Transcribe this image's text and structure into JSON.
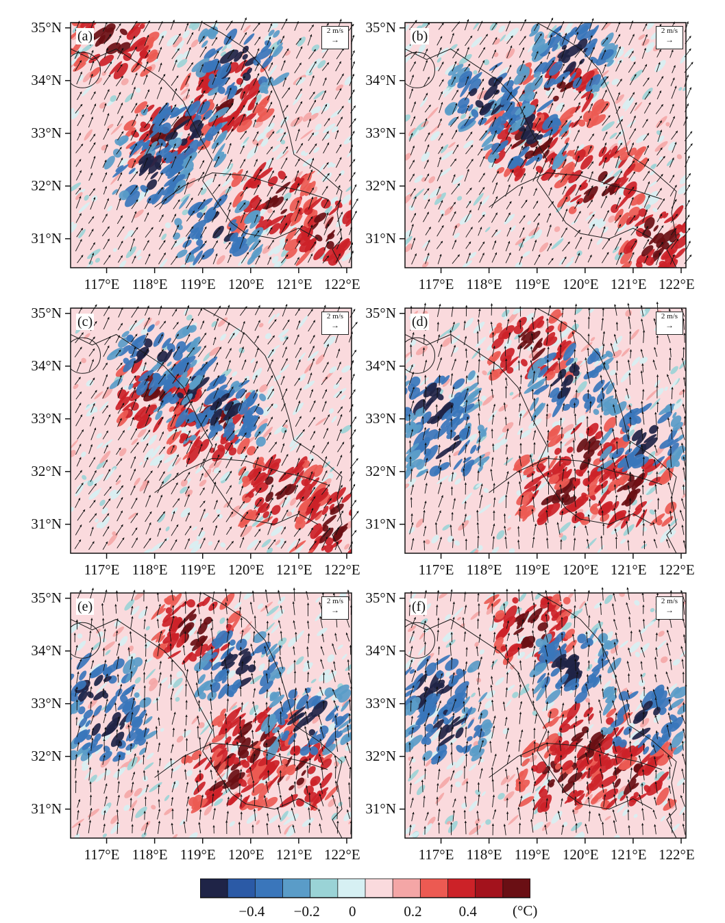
{
  "panels": [
    {
      "label": "(a)",
      "seed": 11,
      "theme": "north"
    },
    {
      "label": "(b)",
      "seed": 23,
      "theme": "northweak"
    },
    {
      "label": "(c)",
      "seed": 37,
      "theme": "weak"
    },
    {
      "label": "(d)",
      "seed": 41,
      "theme": "south"
    },
    {
      "label": "(e)",
      "seed": 53,
      "theme": "south"
    },
    {
      "label": "(f)",
      "seed": 67,
      "theme": "south"
    }
  ],
  "lat_labels": [
    "35°N",
    "34°N",
    "33°N",
    "32°N",
    "31°N"
  ],
  "lon_labels": [
    "117°E",
    "118°E",
    "119°E",
    "120°E",
    "121°E",
    "122°E"
  ],
  "scale_vector": {
    "label": "2 m/s",
    "arrow": "→"
  },
  "colorbar": {
    "colors": [
      "#1f2447",
      "#2b5aa6",
      "#3a76bb",
      "#5a9cc8",
      "#9ad3d6",
      "#d6f0f3",
      "#fadadd",
      "#f4a6a6",
      "#ec5a52",
      "#cc2228",
      "#a3121c",
      "#6a0f14"
    ],
    "tick_labels": [
      "−0.4",
      "−0.2",
      "0",
      "0.2",
      "0.4"
    ],
    "tick_values": [
      -0.4,
      -0.2,
      0,
      0.2,
      0.4
    ],
    "range": [
      -0.6,
      0.6
    ],
    "unit": "(°C)"
  }
}
